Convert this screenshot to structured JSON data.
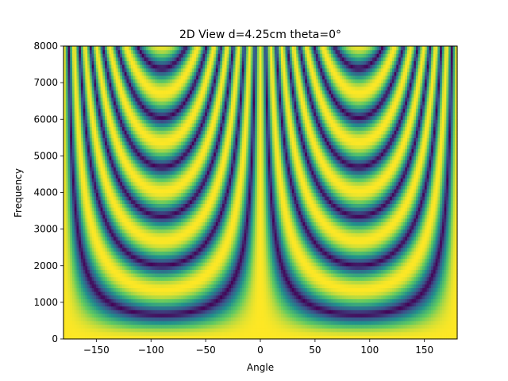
{
  "chart_data": {
    "type": "heatmap",
    "title": "2D View d=4.25cm theta=0°",
    "xlabel": "Angle",
    "ylabel": "Frequency",
    "xlim": [
      -180,
      180
    ],
    "ylim": [
      0,
      8000
    ],
    "x_ticks": [
      -150,
      -100,
      -50,
      0,
      50,
      100,
      150
    ],
    "x_tick_labels": [
      "−150",
      "−100",
      "−50",
      "0",
      "50",
      "100",
      "150"
    ],
    "y_ticks": [
      0,
      1000,
      2000,
      3000,
      4000,
      5000,
      6000,
      7000,
      8000
    ],
    "y_tick_labels": [
      "0",
      "1000",
      "2000",
      "3000",
      "4000",
      "5000",
      "6000",
      "7000",
      "8000"
    ],
    "grid": false,
    "legend": "none",
    "colormap": "viridis",
    "colormap_stops": [
      "#440154",
      "#3b528b",
      "#21918c",
      "#5ec962",
      "#fde725"
    ],
    "x_samples": 181,
    "y_samples": 80,
    "pattern": "two-element array beam pattern, mic spacing 4.25 cm, steering 0°, |sinc|-like response vs angle and frequency"
  }
}
